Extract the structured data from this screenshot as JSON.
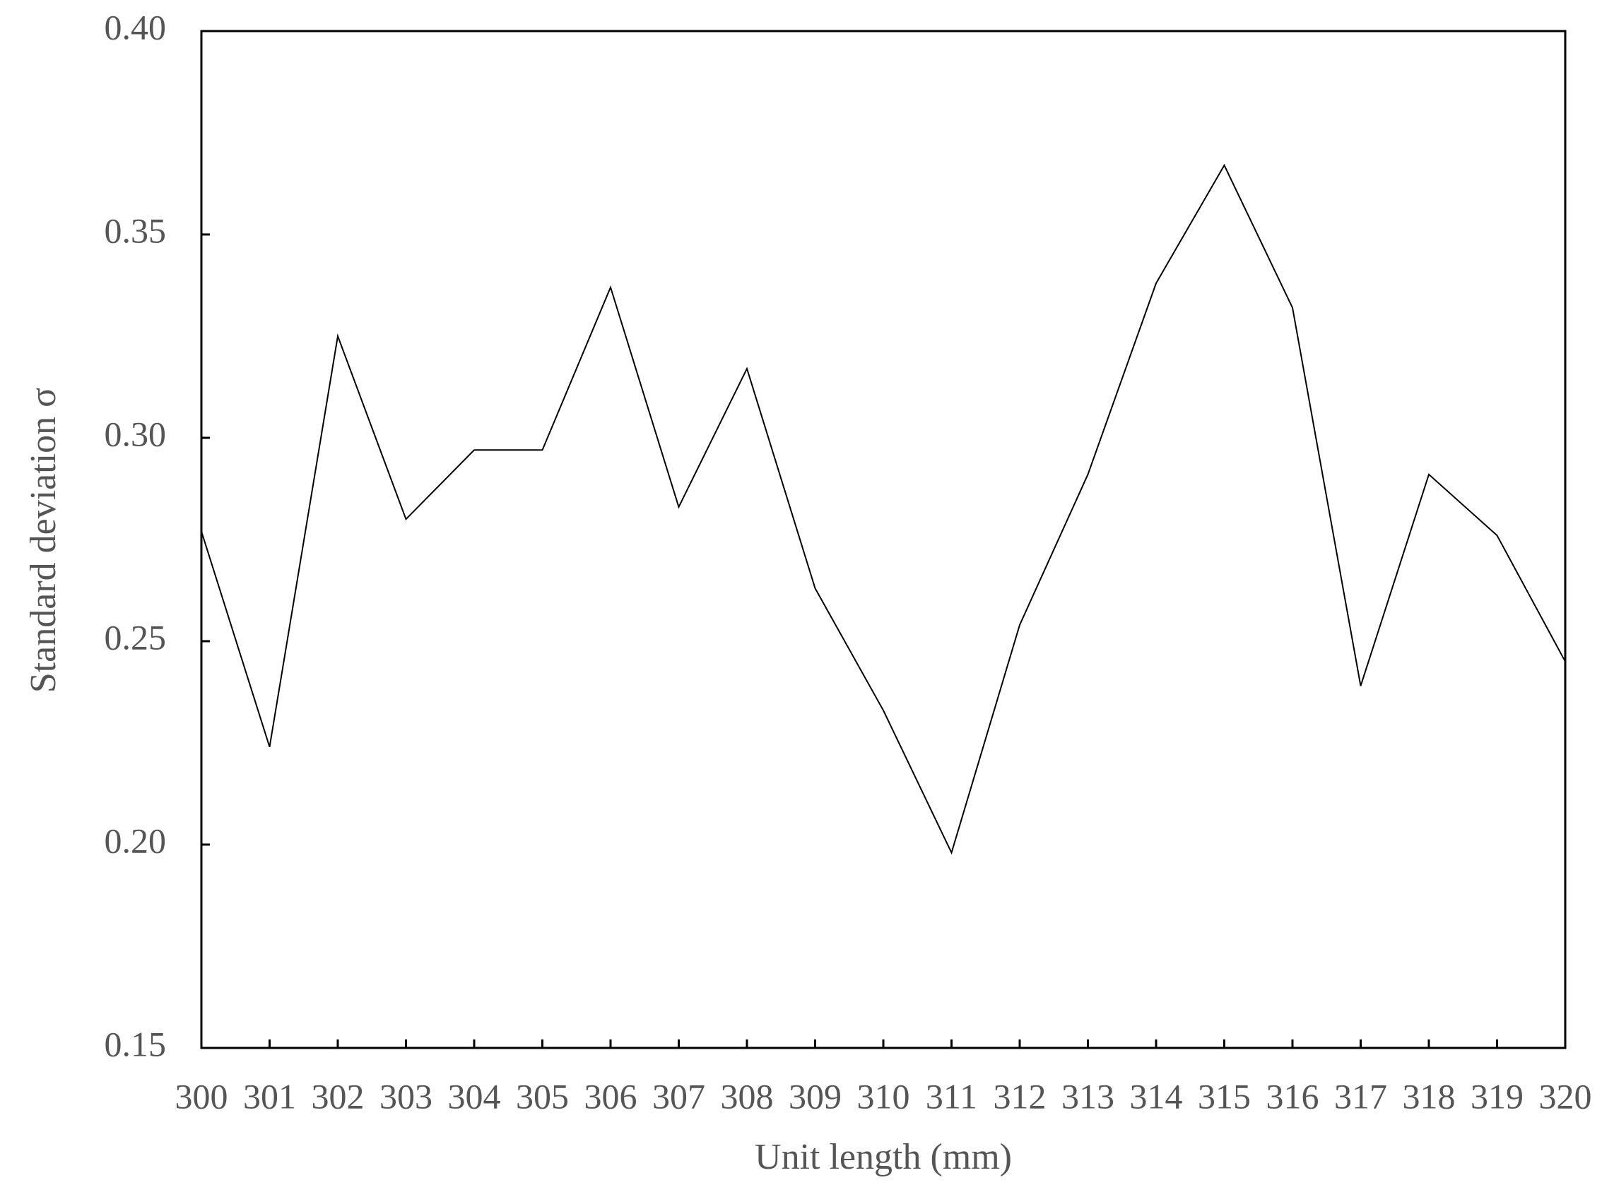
{
  "chart_data": {
    "type": "line",
    "x_label": "Unit length (mm)",
    "y_label": "Standard deviation σ",
    "x": [
      300,
      301,
      302,
      303,
      304,
      305,
      306,
      307,
      308,
      309,
      310,
      311,
      312,
      313,
      314,
      315,
      316,
      317,
      318,
      319,
      320
    ],
    "values": [
      0.277,
      0.224,
      0.325,
      0.28,
      0.297,
      0.297,
      0.337,
      0.283,
      0.317,
      0.263,
      0.233,
      0.198,
      0.254,
      0.291,
      0.338,
      0.367,
      0.332,
      0.239,
      0.291,
      0.276,
      0.245
    ],
    "color": "#000000",
    "xlim": [
      300,
      320
    ],
    "xticks": [
      300,
      301,
      302,
      303,
      304,
      305,
      306,
      307,
      308,
      309,
      310,
      311,
      312,
      313,
      314,
      315,
      316,
      317,
      318,
      319,
      320
    ],
    "ylim": [
      0.15,
      0.4
    ],
    "yticks": [
      0.15,
      {
        "value": 0.2,
        "label": "0.20"
      },
      0.25,
      {
        "value": 0.3,
        "label": "0.30"
      },
      0.35,
      {
        "value": 0.4,
        "label": "0.40"
      }
    ]
  }
}
